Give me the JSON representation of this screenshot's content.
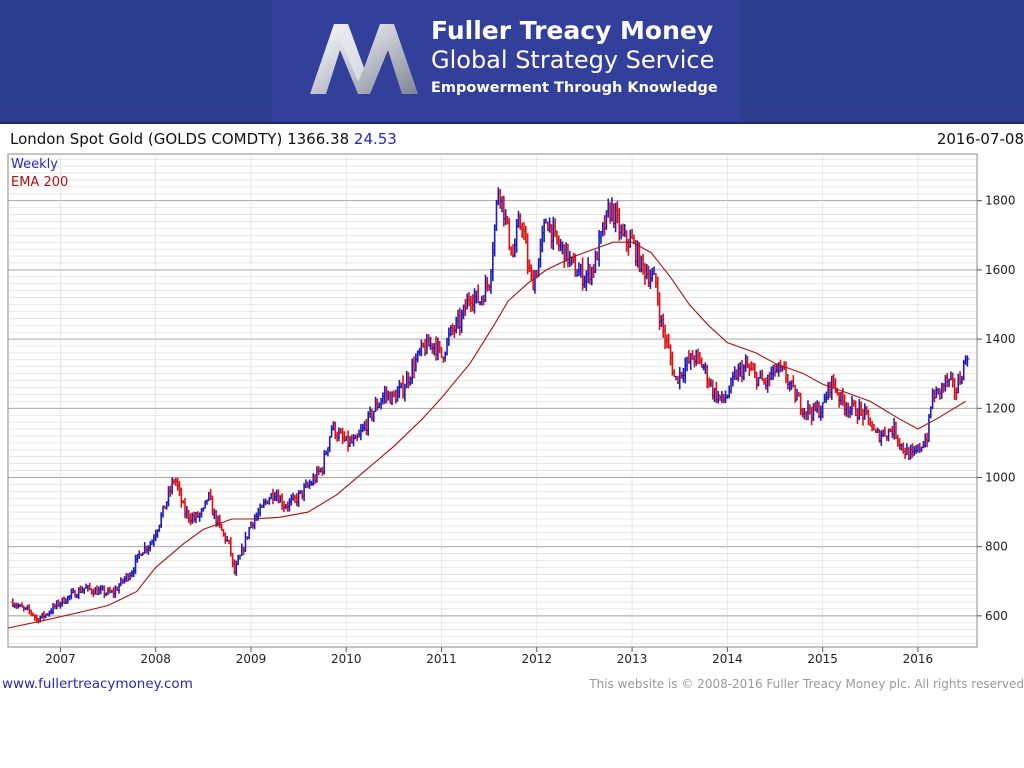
{
  "header": {
    "brand_line1": "Fuller Treacy Money",
    "brand_line2": "Global Strategy Service",
    "tagline": "Empowerment Through Knowledge",
    "logo_icon": "m-logo-icon"
  },
  "title": {
    "instrument": "London Spot Gold (GOLDS COMDTY)",
    "price": "1366.38",
    "change": "24.53",
    "date": "2016-07-08"
  },
  "footer": {
    "url": "www.fullertreacymoney.com",
    "copyright": "This website is © 2008-2016 Fuller Treacy Money plc. All rights reserved"
  },
  "colors": {
    "up_bar": "#1c1cc0",
    "down_bar": "#dd1111",
    "ema_line": "#aa1111",
    "grid": "#d8d8d8",
    "grid_major": "#9a9a9a",
    "banner": "#2e3e8e"
  },
  "chart_data": {
    "type": "line",
    "title": "London Spot Gold (GOLDS COMDTY)",
    "frequency_label": "Weekly",
    "indicator_label": "EMA 200",
    "xlabel": "",
    "ylabel": "",
    "x_ticks": [
      "2007",
      "2008",
      "2009",
      "2010",
      "2011",
      "2012",
      "2013",
      "2014",
      "2015",
      "2016"
    ],
    "x_range": [
      2006.45,
      2016.62
    ],
    "y_ticks": [
      600,
      800,
      1000,
      1200,
      1400,
      1600,
      1800
    ],
    "ylim": [
      510,
      1935
    ],
    "grid": true,
    "legend": "top-left",
    "series": [
      {
        "name": "Weekly",
        "style": "price-bars",
        "x": [
          2006.5,
          2006.6,
          2006.7,
          2006.75,
          2006.85,
          2007.0,
          2007.15,
          2007.25,
          2007.4,
          2007.55,
          2007.65,
          2007.75,
          2007.85,
          2007.95,
          2008.05,
          2008.15,
          2008.2,
          2008.3,
          2008.4,
          2008.5,
          2008.55,
          2008.6,
          2008.7,
          2008.78,
          2008.82,
          2008.9,
          2009.0,
          2009.1,
          2009.15,
          2009.25,
          2009.35,
          2009.45,
          2009.55,
          2009.65,
          2009.75,
          2009.85,
          2009.92,
          2010.0,
          2010.1,
          2010.2,
          2010.3,
          2010.4,
          2010.5,
          2010.6,
          2010.7,
          2010.8,
          2010.92,
          2011.0,
          2011.1,
          2011.2,
          2011.3,
          2011.4,
          2011.5,
          2011.55,
          2011.6,
          2011.65,
          2011.7,
          2011.75,
          2011.8,
          2011.85,
          2011.9,
          2011.95,
          2012.0,
          2012.1,
          2012.2,
          2012.3,
          2012.4,
          2012.5,
          2012.6,
          2012.7,
          2012.78,
          2012.85,
          2012.9,
          2013.0,
          2013.1,
          2013.2,
          2013.25,
          2013.3,
          2013.4,
          2013.45,
          2013.55,
          2013.65,
          2013.75,
          2013.85,
          2013.95,
          2014.0,
          2014.1,
          2014.2,
          2014.3,
          2014.4,
          2014.5,
          2014.6,
          2014.7,
          2014.8,
          2014.9,
          2015.0,
          2015.05,
          2015.1,
          2015.2,
          2015.3,
          2015.4,
          2015.5,
          2015.55,
          2015.65,
          2015.75,
          2015.85,
          2015.95,
          2016.0,
          2016.05,
          2016.1,
          2016.15,
          2016.2,
          2016.3,
          2016.4,
          2016.5,
          2016.52
        ],
        "values": [
          640,
          620,
          610,
          590,
          605,
          640,
          665,
          680,
          670,
          665,
          700,
          730,
          790,
          810,
          880,
          960,
          1000,
          900,
          880,
          900,
          950,
          900,
          840,
          800,
          720,
          780,
          870,
          900,
          930,
          960,
          920,
          930,
          960,
          990,
          1030,
          1150,
          1120,
          1100,
          1100,
          1150,
          1200,
          1240,
          1230,
          1260,
          1320,
          1370,
          1390,
          1350,
          1420,
          1450,
          1530,
          1510,
          1570,
          1700,
          1850,
          1780,
          1700,
          1640,
          1720,
          1740,
          1620,
          1560,
          1600,
          1750,
          1680,
          1650,
          1600,
          1580,
          1610,
          1720,
          1780,
          1730,
          1690,
          1680,
          1610,
          1580,
          1560,
          1450,
          1350,
          1280,
          1320,
          1350,
          1320,
          1250,
          1220,
          1240,
          1300,
          1320,
          1290,
          1270,
          1310,
          1300,
          1240,
          1200,
          1190,
          1200,
          1250,
          1280,
          1220,
          1200,
          1190,
          1160,
          1120,
          1130,
          1140,
          1080,
          1060,
          1080,
          1100,
          1120,
          1240,
          1240,
          1280,
          1250,
          1340,
          1366
        ]
      },
      {
        "name": "EMA 200",
        "style": "line",
        "x": [
          2006.45,
          2006.8,
          2007.2,
          2007.5,
          2007.8,
          2008.0,
          2008.3,
          2008.5,
          2008.8,
          2009.0,
          2009.3,
          2009.6,
          2009.9,
          2010.2,
          2010.5,
          2010.8,
          2011.0,
          2011.3,
          2011.55,
          2011.7,
          2011.9,
          2012.1,
          2012.4,
          2012.6,
          2012.8,
          2013.0,
          2013.2,
          2013.4,
          2013.6,
          2013.8,
          2014.0,
          2014.3,
          2014.5,
          2014.8,
          2015.0,
          2015.3,
          2015.5,
          2015.8,
          2016.0,
          2016.2,
          2016.5
        ],
        "values": [
          565,
          585,
          610,
          630,
          670,
          740,
          810,
          850,
          880,
          880,
          885,
          900,
          950,
          1020,
          1090,
          1170,
          1230,
          1330,
          1440,
          1510,
          1560,
          1600,
          1640,
          1660,
          1680,
          1680,
          1650,
          1580,
          1500,
          1440,
          1390,
          1360,
          1330,
          1300,
          1270,
          1240,
          1220,
          1170,
          1140,
          1170,
          1220
        ]
      }
    ]
  }
}
